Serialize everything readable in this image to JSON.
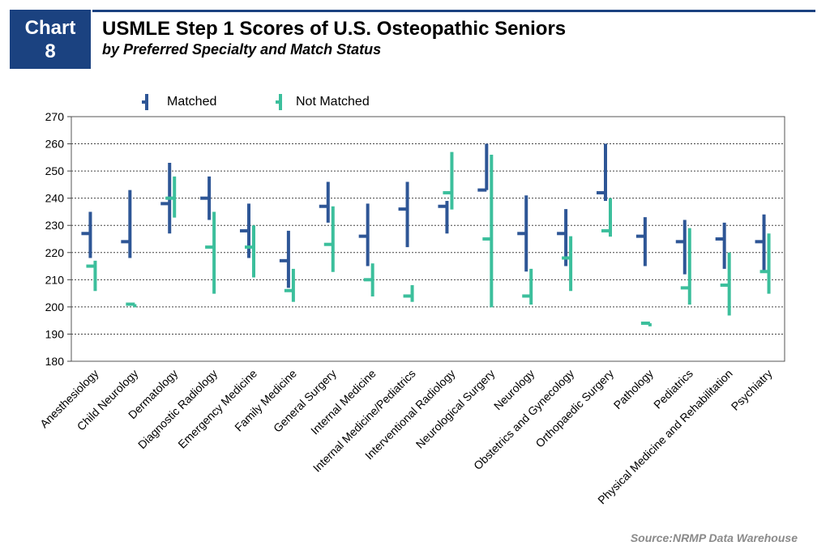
{
  "badge": {
    "line1": "Chart",
    "line2": "8"
  },
  "header": {
    "title": "USMLE Step 1 Scores of U.S. Osteopathic Seniors",
    "subtitle": "by Preferred Specialty and Match Status"
  },
  "source": "Source:NRMP Data Warehouse",
  "colors": {
    "matched": "#2e5696",
    "not_matched": "#3cbf9c",
    "brand": "#1b4280"
  },
  "chart_data": {
    "type": "high-low-close",
    "ylim": [
      180,
      270
    ],
    "yticks": [
      180,
      190,
      200,
      210,
      220,
      230,
      240,
      250,
      260,
      270
    ],
    "grid": "horizontal dotted",
    "legend_position": "top-left",
    "categories": [
      "Anesthesiology",
      "Child Neurology",
      "Dermatology",
      "Diagnostic Radiology",
      "Emergency Medicine",
      "Family Medicine",
      "General Surgery",
      "Internal Medicine",
      "Internal Medicine/Pediatrics",
      "Interventional Radiology",
      "Neurological Surgery",
      "Neurology",
      "Obstetrics and Gynecology",
      "Orthopaedic Surgery",
      "Pathology",
      "Pediatrics",
      "Physical Medicine and Rehabilitation",
      "Psychiatry"
    ],
    "series": [
      {
        "name": "Matched",
        "high": [
          235,
          243,
          253,
          248,
          238,
          228,
          246,
          238,
          246,
          239,
          260,
          241,
          236,
          260,
          233,
          232,
          231,
          234
        ],
        "low": [
          218,
          218,
          227,
          232,
          218,
          207,
          231,
          215,
          222,
          227,
          243,
          213,
          215,
          239,
          215,
          212,
          214,
          213
        ],
        "mean": [
          227,
          224,
          238,
          240,
          228,
          217,
          237,
          226,
          236,
          237,
          243,
          227,
          227,
          242,
          226,
          224,
          225,
          224
        ]
      },
      {
        "name": "Not Matched",
        "high": [
          217,
          201,
          248,
          235,
          230,
          214,
          237,
          216,
          208,
          257,
          256,
          214,
          226,
          240,
          194,
          229,
          220,
          227
        ],
        "low": [
          206,
          200,
          233,
          205,
          211,
          202,
          213,
          204,
          202,
          236,
          200,
          201,
          206,
          226,
          193,
          201,
          197,
          205
        ],
        "mean": [
          215,
          201,
          240,
          222,
          222,
          206,
          223,
          210,
          204,
          242,
          225,
          204,
          218,
          228,
          194,
          207,
          208,
          213
        ]
      }
    ]
  }
}
